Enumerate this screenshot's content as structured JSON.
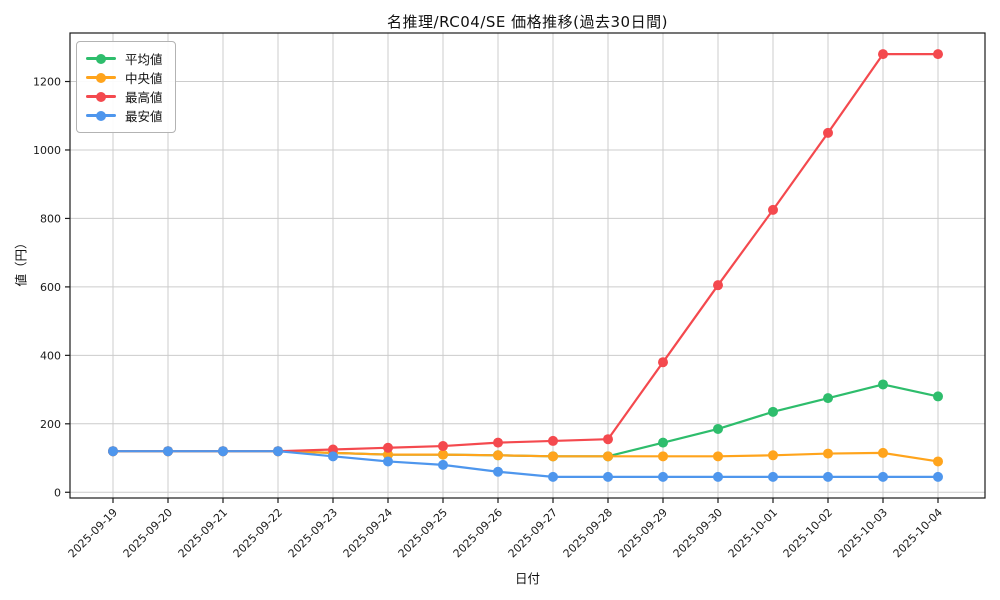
{
  "chart_data": {
    "type": "line",
    "title": "名推理/RC04/SE 価格推移(過去30日間)",
    "xlabel": "日付",
    "ylabel": "値（円）",
    "x": [
      "2025-09-19",
      "2025-09-20",
      "2025-09-21",
      "2025-09-22",
      "2025-09-23",
      "2025-09-24",
      "2025-09-25",
      "2025-09-26",
      "2025-09-27",
      "2025-09-28",
      "2025-09-29",
      "2025-09-30",
      "2025-10-01",
      "2025-10-02",
      "2025-10-03",
      "2025-10-04"
    ],
    "series": [
      {
        "name": "平均値",
        "key": "average",
        "color": "#2ebd6c",
        "values": [
          120,
          120,
          120,
          120,
          115,
          110,
          110,
          108,
          105,
          105,
          145,
          185,
          235,
          275,
          315,
          280
        ]
      },
      {
        "name": "中央値",
        "key": "median",
        "color": "#ffa41c",
        "values": [
          120,
          120,
          120,
          120,
          115,
          110,
          110,
          108,
          105,
          105,
          105,
          105,
          108,
          113,
          115,
          90
        ]
      },
      {
        "name": "最高値",
        "key": "max",
        "color": "#f4494e",
        "values": [
          120,
          120,
          120,
          120,
          125,
          130,
          135,
          145,
          150,
          155,
          380,
          605,
          825,
          1050,
          1280,
          1280
        ]
      },
      {
        "name": "最安値",
        "key": "min",
        "color": "#4e96ed",
        "values": [
          120,
          120,
          120,
          120,
          105,
          90,
          80,
          60,
          45,
          45,
          45,
          45,
          45,
          45,
          45,
          45
        ]
      }
    ],
    "yticks": [
      0,
      200,
      400,
      600,
      800,
      1000,
      1200
    ],
    "ylim": [
      -16.75,
      1341.75
    ],
    "grid": true,
    "grid_color": "#cccccc",
    "spine_color": "#1a1a1a",
    "legend_position": "upper left",
    "tick_label_color": "#1a1a1a"
  }
}
